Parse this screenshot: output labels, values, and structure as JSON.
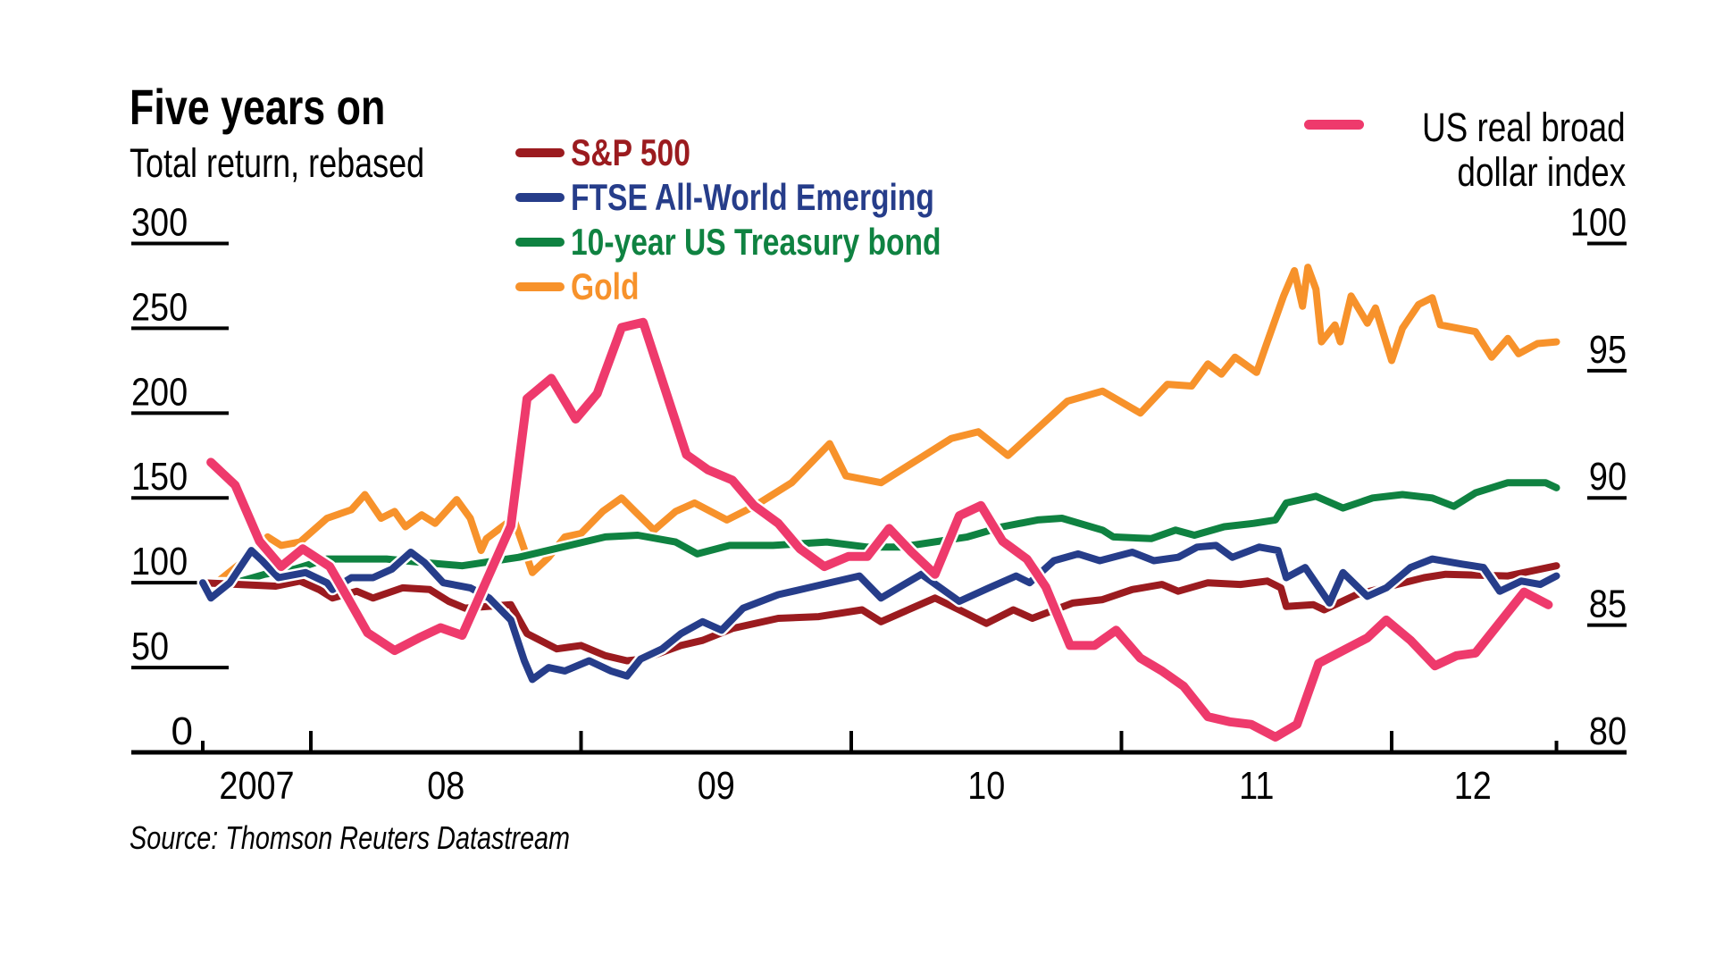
{
  "chart_data": {
    "type": "line",
    "title": "Five years on",
    "subtitle": "Total return, rebased",
    "source": "Source: Thomson Reuters Datastream",
    "x_axis": {
      "labels": [
        "2007",
        "08",
        "09",
        "10",
        "11",
        "12"
      ],
      "label_years": [
        2007.8,
        2008.5,
        2009.5,
        2010.5,
        2011.5,
        2012.3
      ],
      "year_ticks": [
        2008,
        2009,
        2010,
        2011,
        2012
      ],
      "range": [
        2007.6,
        2012.61
      ]
    },
    "y_left": {
      "label": "Total return, rebased",
      "ticks": [
        0,
        50,
        100,
        150,
        200,
        250,
        300
      ],
      "tick_labels": [
        "0",
        "50",
        "100",
        "150",
        "200",
        "250",
        "300"
      ],
      "range": [
        0,
        300
      ]
    },
    "y_right": {
      "label": "US real broad dollar index",
      "ticks": [
        80,
        85,
        90,
        95,
        100
      ],
      "tick_labels": [
        "80",
        "85",
        "90",
        "95",
        "100"
      ],
      "range": [
        80,
        100
      ]
    },
    "legend": {
      "left": [
        {
          "name": "S&P 500",
          "color": "#9b1b1f"
        },
        {
          "name": "FTSE All-World Emerging",
          "color": "#263d8a"
        },
        {
          "name": "10-year US Treasury bond",
          "color": "#0f8241"
        },
        {
          "name": "Gold",
          "color": "#f7922b"
        }
      ],
      "right": {
        "name_line1": "US real broad",
        "name_line2": "dollar index",
        "color": "#ee3a6c"
      }
    },
    "series": [
      {
        "name": "Gold",
        "axis": "left",
        "color": "#f7922b",
        "points": [
          [
            2007.6,
            100
          ],
          [
            2007.65,
            100
          ],
          [
            2007.76,
            114
          ],
          [
            2007.84,
            127
          ],
          [
            2007.89,
            122
          ],
          [
            2007.96,
            124
          ],
          [
            2008.06,
            138
          ],
          [
            2008.15,
            143
          ],
          [
            2008.2,
            152
          ],
          [
            2008.26,
            138
          ],
          [
            2008.31,
            142
          ],
          [
            2008.35,
            133
          ],
          [
            2008.41,
            140
          ],
          [
            2008.46,
            135
          ],
          [
            2008.54,
            149
          ],
          [
            2008.59,
            138
          ],
          [
            2008.63,
            119
          ],
          [
            2008.65,
            126
          ],
          [
            2008.75,
            138
          ],
          [
            2008.82,
            106
          ],
          [
            2008.88,
            115
          ],
          [
            2008.94,
            127
          ],
          [
            2009.0,
            129
          ],
          [
            2009.08,
            142
          ],
          [
            2009.15,
            150
          ],
          [
            2009.2,
            142
          ],
          [
            2009.27,
            131
          ],
          [
            2009.35,
            142
          ],
          [
            2009.42,
            147
          ],
          [
            2009.54,
            137
          ],
          [
            2009.64,
            145
          ],
          [
            2009.78,
            159
          ],
          [
            2009.92,
            182
          ],
          [
            2009.98,
            163
          ],
          [
            2010.11,
            159
          ],
          [
            2010.26,
            174
          ],
          [
            2010.37,
            185
          ],
          [
            2010.47,
            189
          ],
          [
            2010.58,
            175
          ],
          [
            2010.69,
            191
          ],
          [
            2010.8,
            207
          ],
          [
            2010.93,
            213
          ],
          [
            2011.07,
            200
          ],
          [
            2011.17,
            217
          ],
          [
            2011.26,
            216
          ],
          [
            2011.32,
            229
          ],
          [
            2011.37,
            223
          ],
          [
            2011.42,
            233
          ],
          [
            2011.5,
            224
          ],
          [
            2011.54,
            242
          ],
          [
            2011.6,
            269
          ],
          [
            2011.64,
            284
          ],
          [
            2011.67,
            263
          ],
          [
            2011.69,
            286
          ],
          [
            2011.72,
            273
          ],
          [
            2011.74,
            242
          ],
          [
            2011.79,
            252
          ],
          [
            2011.81,
            242
          ],
          [
            2011.85,
            269
          ],
          [
            2011.91,
            253
          ],
          [
            2011.94,
            262
          ],
          [
            2012.0,
            231
          ],
          [
            2012.04,
            250
          ],
          [
            2012.1,
            264
          ],
          [
            2012.15,
            268
          ],
          [
            2012.18,
            252
          ],
          [
            2012.31,
            248
          ],
          [
            2012.37,
            233
          ],
          [
            2012.43,
            244
          ],
          [
            2012.47,
            235
          ],
          [
            2012.54,
            241
          ],
          [
            2012.61,
            242
          ]
        ]
      },
      {
        "name": "10-year US Treasury bond",
        "axis": "left",
        "color": "#0f8241",
        "points": [
          [
            2007.6,
            100
          ],
          [
            2007.72,
            100
          ],
          [
            2007.83,
            105
          ],
          [
            2007.94,
            108
          ],
          [
            2008.06,
            114
          ],
          [
            2008.28,
            114
          ],
          [
            2008.41,
            112
          ],
          [
            2008.56,
            110
          ],
          [
            2008.77,
            115
          ],
          [
            2009.09,
            127
          ],
          [
            2009.21,
            128
          ],
          [
            2009.35,
            124
          ],
          [
            2009.43,
            117
          ],
          [
            2009.55,
            122
          ],
          [
            2009.71,
            122
          ],
          [
            2009.91,
            124
          ],
          [
            2010.06,
            121
          ],
          [
            2010.18,
            121
          ],
          [
            2010.43,
            127
          ],
          [
            2010.56,
            133
          ],
          [
            2010.69,
            137
          ],
          [
            2010.78,
            138
          ],
          [
            2010.93,
            131
          ],
          [
            2010.97,
            127
          ],
          [
            2011.11,
            126
          ],
          [
            2011.2,
            131
          ],
          [
            2011.27,
            128
          ],
          [
            2011.38,
            133
          ],
          [
            2011.49,
            135
          ],
          [
            2011.57,
            137
          ],
          [
            2011.61,
            147
          ],
          [
            2011.72,
            151
          ],
          [
            2011.82,
            144
          ],
          [
            2011.93,
            150
          ],
          [
            2012.04,
            152
          ],
          [
            2012.15,
            150
          ],
          [
            2012.23,
            145
          ],
          [
            2012.31,
            153
          ],
          [
            2012.43,
            159
          ],
          [
            2012.57,
            159
          ],
          [
            2012.61,
            156
          ]
        ]
      },
      {
        "name": "S&P 500",
        "axis": "left",
        "color": "#9b1b1f",
        "points": [
          [
            2007.6,
            100
          ],
          [
            2007.87,
            98
          ],
          [
            2007.96,
            101
          ],
          [
            2008.03,
            96
          ],
          [
            2008.08,
            91
          ],
          [
            2008.17,
            95
          ],
          [
            2008.23,
            91
          ],
          [
            2008.34,
            97
          ],
          [
            2008.44,
            96
          ],
          [
            2008.51,
            89
          ],
          [
            2008.57,
            85
          ],
          [
            2008.74,
            87
          ],
          [
            2008.8,
            70
          ],
          [
            2008.91,
            61
          ],
          [
            2009.0,
            63
          ],
          [
            2009.09,
            57
          ],
          [
            2009.17,
            54
          ],
          [
            2009.23,
            55
          ],
          [
            2009.37,
            63
          ],
          [
            2009.45,
            66
          ],
          [
            2009.56,
            73
          ],
          [
            2009.73,
            79
          ],
          [
            2009.88,
            80
          ],
          [
            2010.04,
            84
          ],
          [
            2010.11,
            77
          ],
          [
            2010.31,
            91
          ],
          [
            2010.4,
            84
          ],
          [
            2010.5,
            76
          ],
          [
            2010.6,
            84
          ],
          [
            2010.67,
            79
          ],
          [
            2010.82,
            88
          ],
          [
            2010.93,
            90
          ],
          [
            2011.04,
            96
          ],
          [
            2011.15,
            99
          ],
          [
            2011.21,
            95
          ],
          [
            2011.32,
            100
          ],
          [
            2011.44,
            99
          ],
          [
            2011.54,
            101
          ],
          [
            2011.59,
            97
          ],
          [
            2011.61,
            86
          ],
          [
            2011.71,
            87
          ],
          [
            2011.75,
            84
          ],
          [
            2011.87,
            93
          ],
          [
            2012.12,
            103
          ],
          [
            2012.2,
            105
          ],
          [
            2012.43,
            104
          ],
          [
            2012.61,
            110
          ]
        ]
      },
      {
        "name": "FTSE All-World Emerging",
        "axis": "left",
        "color": "#263d8a",
        "points": [
          [
            2007.6,
            100
          ],
          [
            2007.63,
            91
          ],
          [
            2007.7,
            100
          ],
          [
            2007.78,
            119
          ],
          [
            2007.82,
            113
          ],
          [
            2007.88,
            103
          ],
          [
            2007.98,
            106
          ],
          [
            2008.06,
            100
          ],
          [
            2008.08,
            96
          ],
          [
            2008.15,
            103
          ],
          [
            2008.23,
            103
          ],
          [
            2008.3,
            108
          ],
          [
            2008.37,
            118
          ],
          [
            2008.42,
            112
          ],
          [
            2008.49,
            100
          ],
          [
            2008.59,
            97
          ],
          [
            2008.66,
            91
          ],
          [
            2008.74,
            78
          ],
          [
            2008.79,
            54
          ],
          [
            2008.82,
            43
          ],
          [
            2008.88,
            50
          ],
          [
            2008.94,
            48
          ],
          [
            2009.03,
            54
          ],
          [
            2009.11,
            48
          ],
          [
            2009.17,
            45
          ],
          [
            2009.22,
            55
          ],
          [
            2009.3,
            61
          ],
          [
            2009.37,
            70
          ],
          [
            2009.45,
            77
          ],
          [
            2009.52,
            72
          ],
          [
            2009.6,
            85
          ],
          [
            2009.73,
            93
          ],
          [
            2009.84,
            97
          ],
          [
            2010.03,
            104
          ],
          [
            2010.11,
            91
          ],
          [
            2010.26,
            105
          ],
          [
            2010.4,
            89
          ],
          [
            2010.51,
            97
          ],
          [
            2010.61,
            104
          ],
          [
            2010.66,
            100
          ],
          [
            2010.75,
            113
          ],
          [
            2010.84,
            117
          ],
          [
            2010.92,
            113
          ],
          [
            2011.04,
            118
          ],
          [
            2011.12,
            113
          ],
          [
            2011.21,
            115
          ],
          [
            2011.28,
            121
          ],
          [
            2011.35,
            122
          ],
          [
            2011.41,
            115
          ],
          [
            2011.51,
            121
          ],
          [
            2011.58,
            119
          ],
          [
            2011.61,
            103
          ],
          [
            2011.68,
            109
          ],
          [
            2011.77,
            88
          ],
          [
            2011.82,
            106
          ],
          [
            2011.91,
            92
          ],
          [
            2011.98,
            97
          ],
          [
            2012.07,
            109
          ],
          [
            2012.15,
            114
          ],
          [
            2012.26,
            111
          ],
          [
            2012.34,
            109
          ],
          [
            2012.4,
            95
          ],
          [
            2012.48,
            101
          ],
          [
            2012.55,
            99
          ],
          [
            2012.61,
            104
          ]
        ]
      },
      {
        "name": "US real broad dollar index",
        "axis": "right",
        "color": "#ee3a6c",
        "points": [
          [
            2007.63,
            91.4
          ],
          [
            2007.72,
            90.5
          ],
          [
            2007.81,
            88.3
          ],
          [
            2007.89,
            87.3
          ],
          [
            2007.97,
            88.0
          ],
          [
            2008.07,
            87.3
          ],
          [
            2008.13,
            86.2
          ],
          [
            2008.21,
            84.7
          ],
          [
            2008.31,
            84.0
          ],
          [
            2008.4,
            84.5
          ],
          [
            2008.48,
            84.9
          ],
          [
            2008.56,
            84.6
          ],
          [
            2008.74,
            88.9
          ],
          [
            2008.8,
            93.9
          ],
          [
            2008.89,
            94.7
          ],
          [
            2008.98,
            93.1
          ],
          [
            2009.06,
            94.1
          ],
          [
            2009.15,
            96.7
          ],
          [
            2009.23,
            96.9
          ],
          [
            2009.39,
            91.7
          ],
          [
            2009.47,
            91.1
          ],
          [
            2009.56,
            90.7
          ],
          [
            2009.64,
            89.7
          ],
          [
            2009.73,
            89.0
          ],
          [
            2009.81,
            88.0
          ],
          [
            2009.9,
            87.3
          ],
          [
            2009.99,
            87.7
          ],
          [
            2010.06,
            87.7
          ],
          [
            2010.14,
            88.8
          ],
          [
            2010.22,
            87.9
          ],
          [
            2010.31,
            87.0
          ],
          [
            2010.4,
            89.3
          ],
          [
            2010.48,
            89.7
          ],
          [
            2010.56,
            88.3
          ],
          [
            2010.65,
            87.6
          ],
          [
            2010.72,
            86.5
          ],
          [
            2010.81,
            84.2
          ],
          [
            2010.9,
            84.2
          ],
          [
            2010.98,
            84.8
          ],
          [
            2011.07,
            83.7
          ],
          [
            2011.15,
            83.2
          ],
          [
            2011.23,
            82.6
          ],
          [
            2011.32,
            81.4
          ],
          [
            2011.4,
            81.2
          ],
          [
            2011.48,
            81.1
          ],
          [
            2011.57,
            80.6
          ],
          [
            2011.65,
            81.1
          ],
          [
            2011.73,
            83.5
          ],
          [
            2011.91,
            84.5
          ],
          [
            2011.98,
            85.2
          ],
          [
            2012.07,
            84.4
          ],
          [
            2012.16,
            83.4
          ],
          [
            2012.24,
            83.8
          ],
          [
            2012.31,
            83.9
          ],
          [
            2012.4,
            85.1
          ],
          [
            2012.49,
            86.3
          ],
          [
            2012.58,
            85.8
          ]
        ]
      }
    ]
  }
}
